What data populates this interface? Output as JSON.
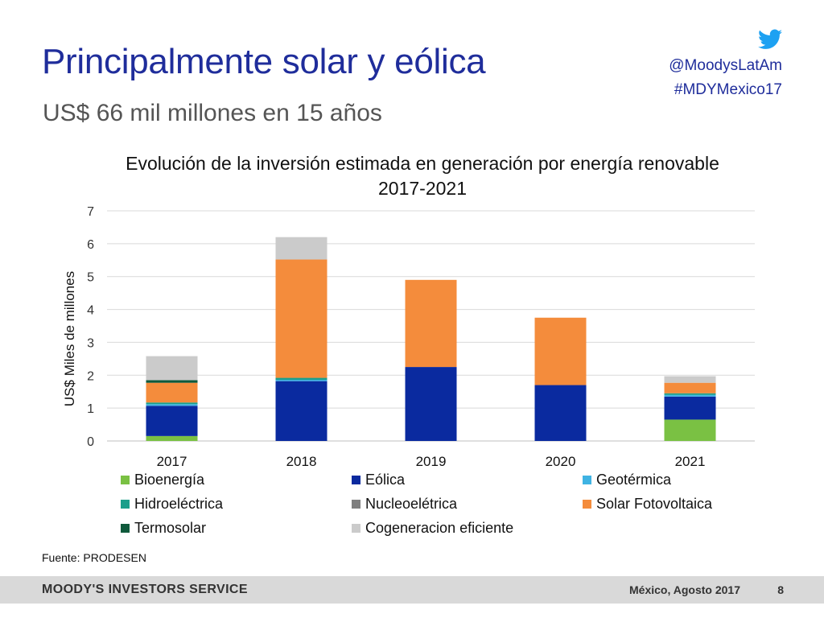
{
  "slide": {
    "title": "Principalmente solar y eólica",
    "subtitle": "US$ 66 mil millones en 15 años",
    "social": {
      "icon": "twitter-icon",
      "handle": "@MoodysLatAm",
      "hashtag": "#MDYMexico17"
    },
    "source": "Fuente: PRODESEN",
    "footer": {
      "brand": "MOODY'S INVESTORS SERVICE",
      "date": "México, Agosto 2017",
      "page": "8"
    }
  },
  "colors": {
    "title": "#1f2d9b",
    "subtitle": "#555555",
    "footer_bg": "#d9d9d9",
    "twitter": "#1da1f2"
  },
  "chart_data": {
    "type": "bar",
    "stacked": true,
    "title": "Evolución de la inversión estimada en generación por energía renovable 2017-2021",
    "xlabel": "",
    "ylabel": "US$ Miles de millones",
    "ylim": [
      0,
      7
    ],
    "yticks": [
      "0",
      "1",
      "2",
      "3",
      "4",
      "5",
      "6",
      "7"
    ],
    "grid": true,
    "legend_position": "bottom",
    "categories": [
      "2017",
      "2018",
      "2019",
      "2020",
      "2021"
    ],
    "series": [
      {
        "name": "Bioenergía",
        "color": "#7ac143",
        "values": [
          0.15,
          0,
          0,
          0,
          0.65
        ]
      },
      {
        "name": "Eólica",
        "color": "#0a2a9f",
        "values": [
          0.92,
          1.82,
          2.25,
          1.7,
          0.7
        ]
      },
      {
        "name": "Geotérmica",
        "color": "#3fb3e3",
        "values": [
          0.05,
          0.04,
          0,
          0,
          0.05
        ]
      },
      {
        "name": "Hidroeléctrica",
        "color": "#1a9e8a",
        "values": [
          0.05,
          0.06,
          0,
          0,
          0.05
        ]
      },
      {
        "name": "Nucleoelétrica",
        "color": "#7f7f7f",
        "values": [
          0,
          0,
          0,
          0,
          0
        ]
      },
      {
        "name": "Solar Fotovoltaica",
        "color": "#f48c3c",
        "values": [
          0.6,
          3.6,
          2.65,
          2.05,
          0.32
        ]
      },
      {
        "name": "Termosolar",
        "color": "#0f5a3c",
        "values": [
          0.08,
          0,
          0,
          0,
          0
        ]
      },
      {
        "name": "Cogeneracion eficiente",
        "color": "#cbcbcb",
        "values": [
          0.73,
          0.68,
          0,
          0,
          0.2
        ]
      }
    ]
  }
}
